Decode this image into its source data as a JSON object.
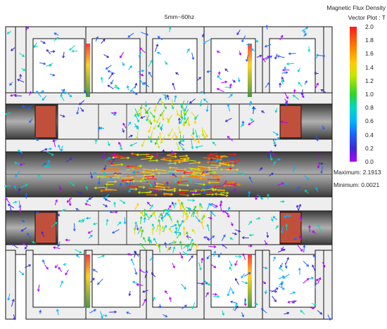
{
  "title": "5mm~60hz",
  "legend": {
    "line1": "Magnetic Flux Density",
    "line2": "Vector Plot : T",
    "ticks": [
      "2.0",
      "1.8",
      "1.6",
      "1.4",
      "1.2",
      "1.0",
      "0.8",
      "0.6",
      "0.4",
      "0.2",
      "0.0"
    ],
    "colors": [
      "#ff1a1a",
      "#ff7a00",
      "#ffcc00",
      "#c8e600",
      "#2ed42e",
      "#00d8c0",
      "#00b4ff",
      "#2060ff",
      "#3a2ad8",
      "#b000ff"
    ]
  },
  "stats": {
    "maximum_label": "Maximum:",
    "maximum_value": "2.1913",
    "minimum_label": "Minimum:",
    "minimum_value": "0.0021"
  },
  "materials": {
    "steel": "#eeeeee",
    "coil": "#c0503c",
    "mover_dark": "#2a2a2a",
    "mover_light": "#9a9a9a",
    "outline": "#111111"
  }
}
